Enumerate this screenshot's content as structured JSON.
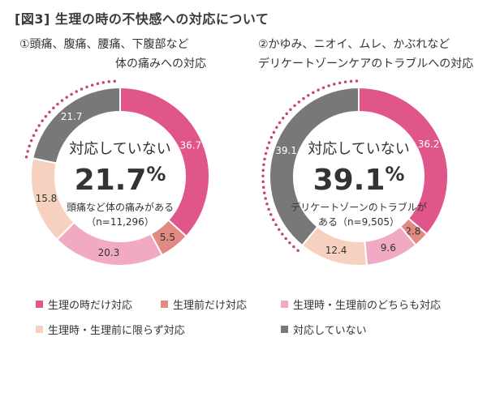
{
  "figure_title": "[図3] 生理の時の不快感への対応について",
  "chart_data": [
    {
      "type": "pie",
      "variant": "donut",
      "title_line1": "①頭痛、腹痛、腰痛、下腹部など",
      "title_line2": "体の痛みへの対応",
      "categories": [
        "生理の時だけ対応",
        "生理前だけ対応",
        "生理時・生理前のどちらも対応",
        "生理時・生理前に限らず対応",
        "対応していない"
      ],
      "values": [
        36.7,
        5.5,
        20.3,
        15.8,
        21.7
      ],
      "value_labels": [
        "36.7",
        "5.5",
        "20.3",
        "15.8",
        "21.7"
      ],
      "center_label": "対応していない",
      "center_value": "21.7",
      "center_unit": "%",
      "note_line1": "頭痛など体の痛みがある",
      "note_line2": "（n=11,296）"
    },
    {
      "type": "pie",
      "variant": "donut",
      "title_line1": "②かゆみ、ニオイ、ムレ、かぶれなど",
      "title_line2": "デリケートゾーンケアのトラブルへの対応",
      "categories": [
        "生理の時だけ対応",
        "生理前だけ対応",
        "生理時・生理前のどちらも対応",
        "生理時・生理前に限らず対応",
        "対応していない"
      ],
      "values": [
        36.2,
        2.8,
        9.6,
        12.4,
        39.1
      ],
      "value_labels": [
        "36.2",
        "2.8",
        "9.6",
        "12.4",
        "39.1"
      ],
      "center_label": "対応していない",
      "center_value": "39.1",
      "center_unit": "%",
      "note_line1": "デリケートゾーンのトラブルが",
      "note_line2": "ある（n=9,505）"
    }
  ],
  "colors": [
    "#e0558a",
    "#e08a82",
    "#f2a9c4",
    "#f6d1bf",
    "#787878"
  ],
  "accent_dot_color": "#c8437a",
  "legend": [
    {
      "label": "生理の時だけ対応"
    },
    {
      "label": "生理前だけ対応"
    },
    {
      "label": "生理時・生理前のどちらも対応"
    },
    {
      "label": "生理時・生理前に限らず対応"
    },
    {
      "label": "対応していない"
    }
  ]
}
